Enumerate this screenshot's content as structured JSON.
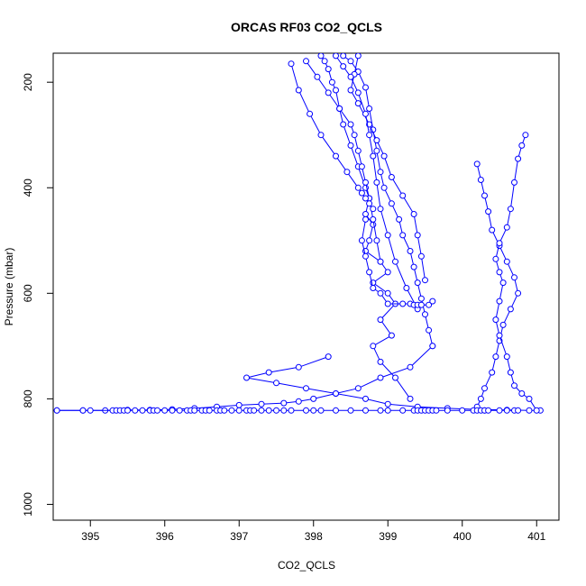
{
  "chart_data": {
    "type": "scatter",
    "title": "ORCAS RF03 CO2_QCLS",
    "xlabel": "CO2_QCLS",
    "ylabel": "Pressure (mbar)",
    "xlim": [
      394.5,
      401.3
    ],
    "ylim": [
      1030,
      145
    ],
    "y_reversed": true,
    "xticks": [
      395,
      396,
      397,
      398,
      399,
      400,
      401
    ],
    "yticks": [
      200,
      400,
      600,
      800,
      1000
    ],
    "grid": false,
    "legend": "none",
    "colors": {
      "series": "#0000ff",
      "axes": "#000000",
      "background": "#ffffff"
    },
    "marker": "open-circle",
    "series": [
      {
        "x": [
          398.1,
          398.15,
          398.2,
          398.25,
          398.3,
          398.35,
          398.4,
          398.5,
          398.6,
          398.7,
          398.75,
          398.7,
          398.8,
          398.75,
          398.7,
          398.9,
          399.0,
          398.8,
          399.0,
          399.1,
          398.9,
          399.05,
          398.8,
          398.9,
          399.1,
          399.3
        ],
        "y": [
          150,
          160,
          175,
          200,
          215,
          250,
          280,
          320,
          360,
          400,
          420,
          450,
          470,
          500,
          520,
          540,
          560,
          580,
          600,
          620,
          650,
          680,
          700,
          730,
          760,
          800
        ]
      },
      {
        "x": [
          398.4,
          398.5,
          398.6,
          398.7,
          398.75,
          398.8,
          398.85,
          398.9,
          398.95,
          399.05,
          399.15,
          399.2,
          399.3,
          399.35,
          399.4,
          399.45,
          399.5,
          399.55,
          399.6
        ],
        "y": [
          150,
          160,
          180,
          210,
          250,
          290,
          330,
          370,
          400,
          430,
          460,
          490,
          520,
          550,
          580,
          610,
          640,
          670,
          700
        ]
      },
      {
        "x": [
          398.6,
          398.55,
          398.5,
          398.6,
          398.75,
          398.85,
          398.95,
          399.05,
          399.2,
          399.35,
          399.4,
          399.45,
          399.5
        ],
        "y": [
          150,
          185,
          215,
          240,
          280,
          310,
          340,
          380,
          415,
          450,
          490,
          530,
          575
        ]
      },
      {
        "x": [
          397.9,
          398.05,
          398.2,
          398.35,
          398.5,
          398.55,
          398.6,
          398.65,
          398.7,
          398.75,
          398.8,
          398.85,
          398.9
        ],
        "y": [
          160,
          190,
          220,
          250,
          280,
          300,
          330,
          360,
          390,
          420,
          460,
          500,
          540
        ]
      },
      {
        "x": [
          397.7,
          397.8,
          397.95,
          398.1,
          398.3,
          398.45,
          398.6,
          398.65,
          398.7,
          398.75,
          398.8
        ],
        "y": [
          165,
          215,
          260,
          300,
          340,
          370,
          400,
          410,
          420,
          430,
          440
        ]
      },
      {
        "x": [
          398.3,
          398.4,
          398.5,
          398.6,
          398.7,
          398.75,
          398.8,
          398.85,
          398.9,
          399.0,
          399.1,
          399.25,
          399.4
        ],
        "y": [
          150,
          170,
          190,
          220,
          260,
          300,
          340,
          390,
          440,
          490,
          540,
          590,
          630
        ]
      },
      {
        "x": [
          398.7,
          398.65,
          398.7,
          398.75,
          398.8,
          398.9,
          399.0,
          399.2,
          399.3,
          399.35,
          399.4,
          399.45,
          399.55,
          399.6
        ],
        "y": [
          460,
          500,
          530,
          560,
          590,
          600,
          620,
          620,
          620,
          622,
          622,
          622,
          622,
          615
        ]
      },
      {
        "x": [
          399.6,
          399.3,
          398.9,
          398.6,
          398.3,
          398.0,
          397.8,
          397.6,
          397.3,
          397.0,
          396.7,
          396.4,
          396.1,
          395.8,
          395.5,
          395.2,
          394.9,
          394.55
        ],
        "y": [
          700,
          740,
          760,
          780,
          790,
          800,
          805,
          808,
          810,
          812,
          815,
          818,
          820,
          821,
          821,
          822,
          822,
          822
        ]
      },
      {
        "x": [
          398.2,
          397.8,
          397.4,
          397.1,
          397.5,
          397.9,
          398.3,
          398.7,
          399.0,
          399.4,
          399.8,
          400.2,
          400.6,
          400.9,
          401.05
        ],
        "y": [
          720,
          740,
          750,
          760,
          770,
          780,
          790,
          800,
          810,
          815,
          818,
          820,
          821,
          822,
          822
        ]
      },
      {
        "x": [
          400.2,
          400.25,
          400.3,
          400.35,
          400.4,
          400.5,
          400.6,
          400.7,
          400.75,
          400.65,
          400.55,
          400.5,
          400.45,
          400.4,
          400.3,
          400.25,
          400.2,
          400.3
        ],
        "y": [
          355,
          385,
          415,
          445,
          480,
          510,
          540,
          570,
          600,
          630,
          660,
          690,
          720,
          750,
          780,
          800,
          815,
          822
        ]
      },
      {
        "x": [
          400.85,
          400.8,
          400.75,
          400.7,
          400.65,
          400.6,
          400.5,
          400.45,
          400.5,
          400.55,
          400.5,
          400.45,
          400.5,
          400.6,
          400.65,
          400.7,
          400.8,
          400.9,
          401.0
        ],
        "y": [
          300,
          320,
          345,
          390,
          440,
          475,
          505,
          535,
          560,
          580,
          615,
          650,
          680,
          720,
          750,
          775,
          790,
          800,
          822
        ]
      },
      {
        "x": [
          394.55,
          394.9,
          395.0,
          395.3,
          395.35,
          395.4,
          395.45,
          395.5,
          395.6,
          395.7,
          395.8,
          395.85,
          395.9,
          396.0,
          396.1,
          396.2,
          396.3,
          396.35,
          396.4,
          396.5,
          396.55,
          396.6,
          396.7,
          396.75,
          396.8,
          396.9,
          397.0,
          397.1,
          397.15,
          397.2,
          397.3,
          397.4,
          397.5,
          397.6,
          397.7,
          397.9,
          398.0,
          398.1,
          398.3,
          398.5,
          398.7,
          398.9,
          399.0,
          399.2,
          399.35,
          399.4,
          399.45,
          399.5,
          399.55,
          399.6,
          399.65,
          399.8,
          400.0,
          400.15,
          400.2,
          400.25,
          400.3,
          400.35,
          400.5,
          400.6,
          400.7,
          400.75
        ],
        "y": [
          822,
          822,
          822,
          822,
          822,
          822,
          822,
          822,
          822,
          822,
          822,
          822,
          822,
          822,
          822,
          822,
          822,
          822,
          822,
          822,
          822,
          822,
          822,
          822,
          822,
          822,
          822,
          822,
          822,
          822,
          822,
          822,
          822,
          822,
          822,
          822,
          822,
          822,
          822,
          822,
          822,
          822,
          822,
          822,
          822,
          822,
          822,
          822,
          822,
          822,
          822,
          822,
          822,
          822,
          822,
          822,
          822,
          822,
          822,
          822,
          822,
          822
        ]
      }
    ]
  }
}
